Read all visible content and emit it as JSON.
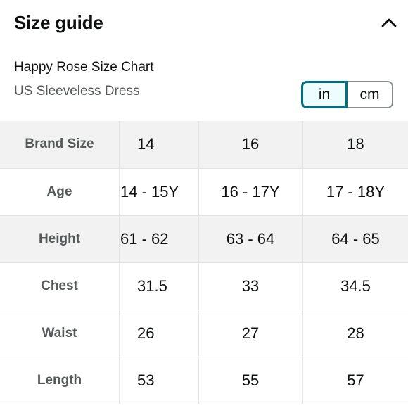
{
  "header": {
    "title": "Size guide",
    "collapse_icon": "chevron-up-icon"
  },
  "chart": {
    "name": "Happy Rose Size Chart",
    "subtitle": "US Sleeveless Dress"
  },
  "units": {
    "options": [
      "in",
      "cm"
    ],
    "selected": "in"
  },
  "table": {
    "rows": [
      {
        "label": "Brand Size",
        "values": [
          "14",
          "16",
          "18"
        ]
      },
      {
        "label": "Age",
        "values": [
          "14 - 15Y",
          "16 - 17Y",
          "17 - 18Y"
        ]
      },
      {
        "label": "Height",
        "values": [
          "61 - 62",
          "63 - 64",
          "64 - 65"
        ]
      },
      {
        "label": "Chest",
        "values": [
          "31.5",
          "33",
          "34.5"
        ]
      },
      {
        "label": "Waist",
        "values": [
          "26",
          "27",
          "28"
        ]
      },
      {
        "label": "Length",
        "values": [
          "53",
          "55",
          "57"
        ]
      }
    ]
  },
  "colors": {
    "accent": "#007185",
    "selected_bg": "#edfdff",
    "row_shade": "#f2f2f2",
    "label_text": "#565959"
  }
}
